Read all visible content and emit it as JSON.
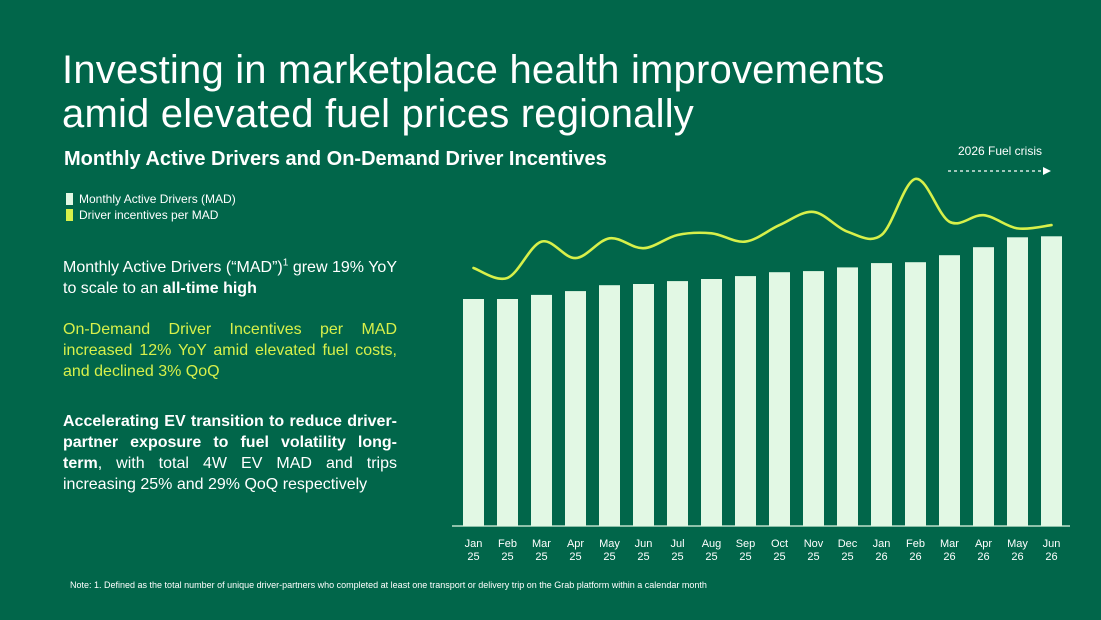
{
  "title_lines": [
    "Investing in marketplace health improvements",
    "amid elevated fuel prices regionally"
  ],
  "subtitle": "Monthly Active Drivers and On-Demand Driver Incentives",
  "legend": [
    {
      "label": "Monthly Active Drivers (MAD)",
      "color": "#e2f8e4"
    },
    {
      "label": "Driver incentives per MAD",
      "color": "#d7f04a"
    }
  ],
  "text": {
    "p1_pre": "Monthly Active Drivers (“MAD”)",
    "p1_sup": "1",
    "p1_mid": " grew 19% YoY to scale to an ",
    "p1_bold": "all-time high",
    "p2": "On-Demand Driver Incentives per MAD increased 12% YoY amid elevated fuel costs, and declined 3% QoQ",
    "p3_bold": "Accelerating EV transition to reduce driver-partner exposure to fuel volatility long-term",
    "p3_rest": ", with total 4W EV MAD and trips increasing 25% and 29% QoQ respectively"
  },
  "annotation": "2026 Fuel crisis",
  "note": "Note: 1. Defined as the total number of unique driver-partners who completed at least one transport or delivery trip on the Grab platform within a calendar month",
  "colors": {
    "background": "#01664a",
    "bar": "#e2f8e4",
    "line": "#d7f04a",
    "text": "#ffffff",
    "highlight": "#d7f04a"
  },
  "chart_data": {
    "type": "bar",
    "categories": [
      [
        "Jan",
        "25"
      ],
      [
        "Feb",
        "25"
      ],
      [
        "Mar",
        "25"
      ],
      [
        "Apr",
        "25"
      ],
      [
        "May",
        "25"
      ],
      [
        "Jun",
        "25"
      ],
      [
        "Jul",
        "25"
      ],
      [
        "Aug",
        "25"
      ],
      [
        "Sep",
        "25"
      ],
      [
        "Oct",
        "25"
      ],
      [
        "Nov",
        "25"
      ],
      [
        "Dec",
        "25"
      ],
      [
        "Jan",
        "26"
      ],
      [
        "Feb",
        "26"
      ],
      [
        "Mar",
        "26"
      ],
      [
        "Apr",
        "26"
      ],
      [
        "May",
        "26"
      ],
      [
        "Jun",
        "26"
      ]
    ],
    "series": [
      {
        "name": "Monthly Active Drivers (MAD)",
        "type": "bar",
        "values": [
          100,
          100,
          101.8,
          103.5,
          106.1,
          106.6,
          107.9,
          108.8,
          110.1,
          111.8,
          112.3,
          113.9,
          115.8,
          116.2,
          119.3,
          122.8,
          127.2,
          127.6
        ]
      },
      {
        "name": "Driver incentives per MAD",
        "type": "line",
        "values": [
          100,
          97,
          108,
          103,
          109,
          106,
          110,
          110.5,
          108,
          113,
          117,
          111,
          110,
          127,
          114,
          116,
          112,
          113
        ]
      }
    ],
    "note": "Chart has no numeric axis; values are relative indices estimated from bar heights and line position (Jan 25 = 100)."
  }
}
